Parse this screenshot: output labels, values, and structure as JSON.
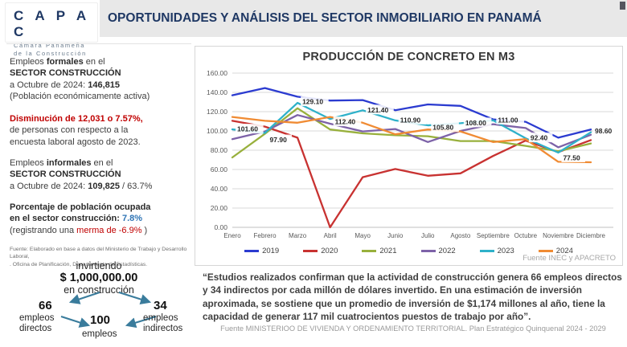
{
  "logo": {
    "title": "C A P A C",
    "subtitle1": "Cámara Panameña",
    "subtitle2": "de la Construcción"
  },
  "header": {
    "title": "OPORTUNIDADES Y ANÁLISIS DEL SECTOR INMOBILIARIO EN PANAMÁ"
  },
  "stats": {
    "formales": {
      "l1_pre": "Empleos ",
      "l1_bold": "formales",
      "l1_post": " en el",
      "l2": "SECTOR CONSTRUCCIÓN",
      "l3_pre": "a Octubre de 2024: ",
      "l3_bold": "146,815",
      "l4": "(Población económicamente activa)"
    },
    "disminucion": {
      "l1": "Disminución de 12,031 o 7.57%,",
      "l2": "de personas con respecto a la",
      "l3": "encuesta laboral agosto de 2023."
    },
    "informales": {
      "l1_pre": "Empleos ",
      "l1_bold": "informales",
      "l1_post": " en el",
      "l2": "SECTOR CONSTRUCCIÓN",
      "l3_pre": "a Octubre de 2024: ",
      "l3_bold": "109,825",
      "l3_post": " / 63.7%"
    },
    "porcentaje": {
      "l1": "Porcentaje de población ocupada",
      "l2_pre": "en el sector construcción: ",
      "l2_accent": "7.8%",
      "l3_pre": "(registrando una ",
      "l3_red": "merma de -6.9%",
      "l3_post": " )"
    },
    "source1": "Fuente: Elaborado en base a datos del Ministerio de Trabajo y Desarrollo Laboral,",
    "source2": ". Oficina de Planificación, Departamento de Estadísticas."
  },
  "investment": {
    "line1": "invirtiendo",
    "amount": "$ 1,000,000.00",
    "line3": "en construcción",
    "direct_value": "66",
    "direct_label1": "empleos",
    "direct_label2": "directos",
    "indirect_value": "34",
    "indirect_label1": "empleos",
    "indirect_label2": "indirectos",
    "total_value": "100",
    "total_label": "empleos",
    "arrow_color": "#3A7C9C"
  },
  "chart_data": {
    "type": "line",
    "title": "PRODUCCIÓN DE CONCRETO EN M3",
    "categories": [
      "Enero",
      "Febrero",
      "Marzo",
      "Abril",
      "Mayo",
      "Junio",
      "Julio",
      "Agosto",
      "Septiembre",
      "Octubre",
      "Noviembre",
      "Diciembre"
    ],
    "series": [
      {
        "name": "2019",
        "color": "#2B3BD0",
        "values": [
          137.0,
          144.5,
          135.5,
          131.5,
          132.0,
          121.5,
          127.5,
          126.0,
          112.0,
          109.5,
          93.0,
          101.5
        ]
      },
      {
        "name": "2020",
        "color": "#C83231",
        "values": [
          110.5,
          104.5,
          93.0,
          0.0,
          52.0,
          60.5,
          53.5,
          56.0,
          74.0,
          90.0,
          78.0,
          90.5
        ]
      },
      {
        "name": "2021",
        "color": "#98B03C",
        "values": [
          72.5,
          97.0,
          123.5,
          101.5,
          97.5,
          95.5,
          94.5,
          89.5,
          89.5,
          84.5,
          79.0,
          87.0
        ]
      },
      {
        "name": "2022",
        "color": "#7D62A8",
        "values": [
          91.5,
          99.5,
          116.5,
          107.5,
          99.5,
          102.0,
          88.5,
          100.0,
          107.0,
          103.0,
          83.0,
          96.0
        ]
      },
      {
        "name": "2023",
        "color": "#2EB1C9",
        "values": [
          101.6,
          97.9,
          129.1,
          112.4,
          121.4,
          110.9,
          105.8,
          108.0,
          111.0,
          92.4,
          77.5,
          98.6
        ],
        "labels": [
          "101.60",
          "97.90",
          "129.10",
          "112.40",
          "121.40",
          "110.90",
          "105.80",
          "108.00",
          "111.00",
          "92.40",
          "77.50",
          "98.60"
        ]
      },
      {
        "name": "2024",
        "color": "#F08B33",
        "values": [
          114.5,
          110.5,
          108.5,
          114.5,
          108.5,
          96.5,
          101.5,
          99.5,
          88.5,
          91.5,
          68.0,
          67.5
        ]
      }
    ],
    "ylim": [
      0,
      160
    ],
    "ytick_step": 20,
    "yticks": [
      "160.00",
      "140.00",
      "120.00",
      "100.00",
      "80.00",
      "60.00",
      "40.00",
      "20.00",
      "0.00"
    ],
    "grid": true,
    "legend_position": "bottom",
    "source": "Fuente INEC y APACRETO"
  },
  "quote": {
    "text": "“Estudios realizados confirman que la actividad de construcción genera 66 empleos directos y 34 indirectos por cada millón de dólares invertido. En una estimación de inversión aproximada, se sostiene que un promedio de inversión de $1,174 millones al año, tiene la capacidad de generar 117 mil cuatrocientos puestos de trabajo por año”.",
    "source": "Fuente MINISTERIOO DE VIVIENDA Y ORDENAMIENTO TERRITORIAL. Plan Estratégico Quinquenal 2024 - 2029"
  }
}
